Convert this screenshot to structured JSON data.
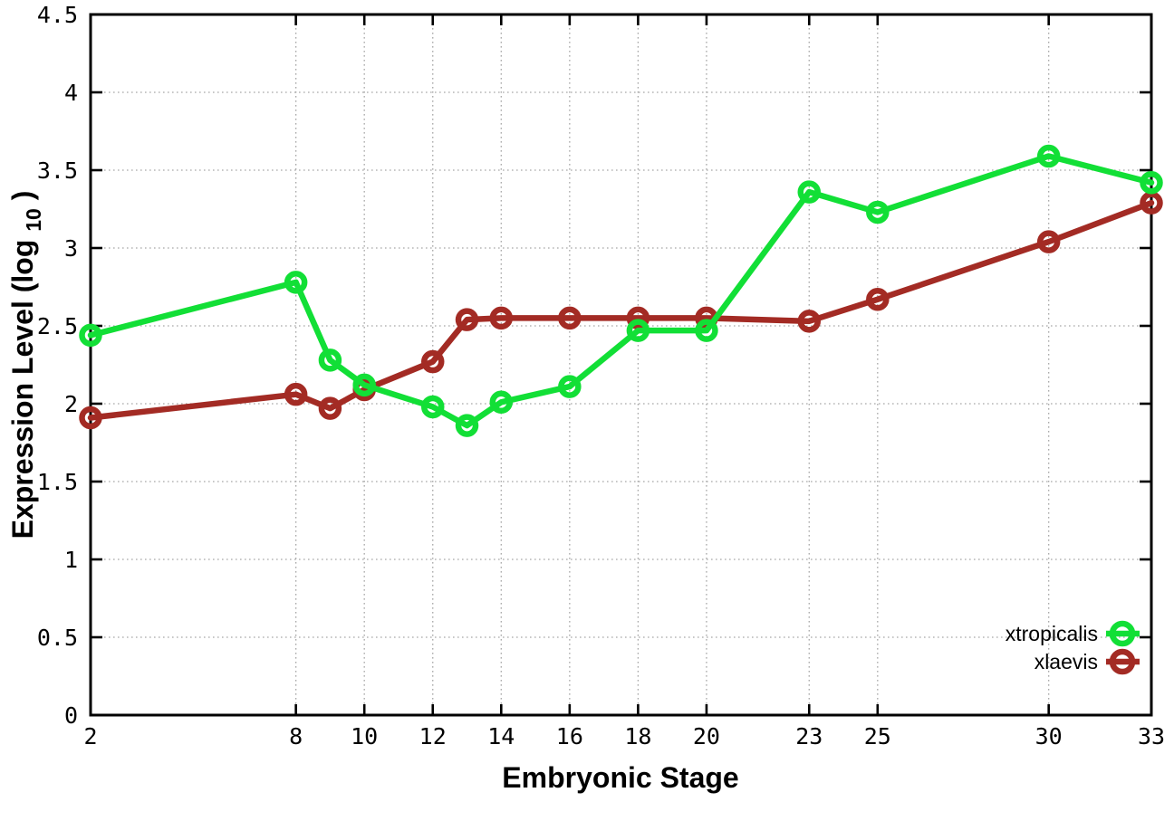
{
  "chart_data": {
    "type": "line",
    "title": "",
    "xlabel": "Embryonic Stage",
    "ylabel": "Expression Level (log10)",
    "ylabel_base": "Expression Level (log",
    "ylabel_sub": "10",
    "ylabel_close": ")",
    "xlim": [
      2,
      33
    ],
    "ylim": [
      0,
      4.5
    ],
    "grid": true,
    "legend_position": "bottom-right",
    "x": [
      2,
      8,
      9,
      10,
      12,
      13,
      14,
      16,
      18,
      20,
      23,
      25,
      30,
      33
    ],
    "xticks": [
      2,
      8,
      10,
      12,
      14,
      16,
      18,
      20,
      23,
      25,
      30,
      33
    ],
    "xtick_labels": [
      "2",
      "8",
      "10",
      "12",
      "14",
      "16",
      "18",
      "20",
      "23",
      "25",
      "30",
      "33"
    ],
    "yticks": [
      0,
      0.5,
      1,
      1.5,
      2,
      2.5,
      3,
      3.5,
      4,
      4.5
    ],
    "ytick_labels": [
      "0",
      "0.5",
      "1",
      "1.5",
      "2",
      "2.5",
      "3",
      "3.5",
      "4",
      "4.5"
    ],
    "series": [
      {
        "name": "xtropicalis",
        "color": "#12DF36",
        "values": [
          2.44,
          2.78,
          2.28,
          2.12,
          1.98,
          1.86,
          2.01,
          2.11,
          2.47,
          2.47,
          3.36,
          3.23,
          3.59,
          3.42
        ]
      },
      {
        "name": "xlaevis",
        "color": "#A32B24",
        "values": [
          1.91,
          2.06,
          1.97,
          2.09,
          2.27,
          2.54,
          2.55,
          2.55,
          2.55,
          2.55,
          2.53,
          2.67,
          3.04,
          3.29
        ]
      }
    ]
  },
  "colors": {
    "background": "#ffffff",
    "axis": "#000000",
    "grid": "#a8a8a8"
  }
}
